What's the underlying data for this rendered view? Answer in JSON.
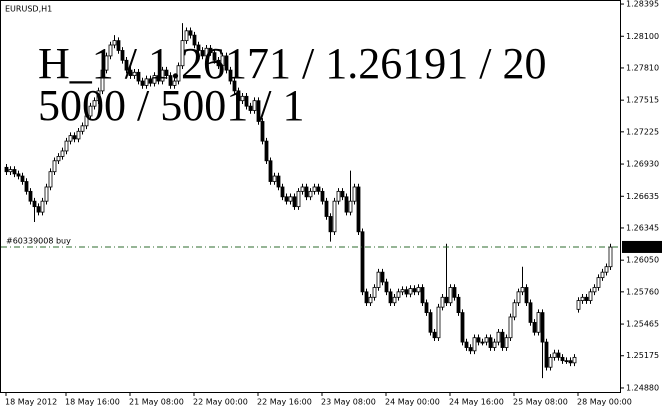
{
  "chart_data": {
    "type": "candlestick",
    "title": "EURUSD,H1",
    "annotations": [
      {
        "text": "H_1 / 1.26171 / 1.26191 / 20",
        "color": "#4169e1"
      },
      {
        "text": "5000 / 5001 / 1",
        "color": "#0a7d0a"
      }
    ],
    "order_line": {
      "label": "#60339008 buy",
      "value": 1.26171,
      "color": "#2e6b2e"
    },
    "last_price": 1.26171,
    "colors": {
      "up": "#ffffff",
      "down": "#000000",
      "outline": "#000000"
    },
    "categories": [
      "18 May 2012",
      null,
      null,
      null,
      null,
      null,
      null,
      null,
      null,
      null,
      null,
      null,
      null,
      null,
      null,
      "18 May 16:00",
      null,
      null,
      null,
      null,
      null,
      null,
      null,
      null,
      null,
      null,
      null,
      null,
      null,
      null,
      null,
      "21 May 08:00",
      null,
      null,
      null,
      null,
      null,
      null,
      null,
      null,
      null,
      null,
      null,
      null,
      null,
      null,
      null,
      "22 May 00:00",
      null,
      null,
      null,
      null,
      null,
      null,
      null,
      null,
      null,
      null,
      null,
      null,
      null,
      null,
      null,
      "22 May 16:00",
      null,
      null,
      null,
      null,
      null,
      null,
      null,
      null,
      null,
      null,
      null,
      null,
      null,
      null,
      null,
      "23 May 08:00",
      null,
      null,
      null,
      null,
      null,
      null,
      null,
      null,
      null,
      null,
      null,
      null,
      null,
      null,
      null,
      "24 May 00:00",
      null,
      null,
      null,
      null,
      null,
      null,
      null,
      null,
      null,
      null,
      null,
      null,
      null,
      null,
      null,
      "24 May 16:00",
      null,
      null,
      null,
      null,
      null,
      null,
      null,
      null,
      null,
      null,
      null,
      null,
      null,
      null,
      null,
      "25 May 08:00",
      null,
      null,
      null,
      null,
      null,
      null,
      null,
      null,
      null,
      null,
      null,
      null,
      null,
      null,
      null,
      "28 May 00:00",
      null,
      null,
      null,
      null,
      null,
      null,
      null,
      null
    ],
    "open": [
      1.269,
      1.2686,
      1.2688,
      1.2684,
      1.2682,
      1.2677,
      1.2668,
      1.2659,
      1.2654,
      1.2649,
      1.2659,
      1.2672,
      1.2686,
      1.2696,
      1.27,
      1.2705,
      1.2714,
      1.2719,
      1.2716,
      1.2723,
      1.2728,
      1.2737,
      1.2746,
      1.2751,
      1.276,
      1.2779,
      1.2792,
      1.2802,
      1.2806,
      1.2797,
      1.2788,
      1.2779,
      1.2774,
      1.2777,
      1.2769,
      1.2765,
      1.2771,
      1.2767,
      1.2774,
      1.2769,
      1.2779,
      1.2774,
      1.2765,
      1.2769,
      1.2783,
      1.2806,
      1.2815,
      1.2811,
      1.2802,
      1.2797,
      1.2792,
      1.2799,
      1.2795,
      1.2788,
      1.2783,
      1.2792,
      1.2779,
      1.2769,
      1.276,
      1.2751,
      1.2755,
      1.2746,
      1.2742,
      1.2751,
      1.2732,
      1.2714,
      1.2696,
      1.2677,
      1.2682,
      1.2672,
      1.2663,
      1.2659,
      1.2663,
      1.2654,
      1.2668,
      1.2672,
      1.2663,
      1.2668,
      1.2672,
      1.2668,
      1.2659,
      1.2645,
      1.2631,
      1.2659,
      1.2668,
      1.2663,
      1.2649,
      1.2659,
      1.2672,
      1.2631,
      1.2576,
      1.2566,
      1.2571,
      1.258,
      1.2594,
      1.2585,
      1.2576,
      1.2566,
      1.2571,
      1.2576,
      1.2578,
      1.2574,
      1.2579,
      1.2576,
      1.258,
      1.2566,
      1.2557,
      1.2539,
      1.2534,
      1.2562,
      1.2571,
      1.2566,
      1.258,
      1.2571,
      1.2557,
      1.253,
      1.2525,
      1.2522,
      1.2534,
      1.253,
      1.253,
      1.2534,
      1.2525,
      1.253,
      1.2539,
      1.2525,
      1.2534,
      1.2553,
      1.2566,
      1.2576,
      1.258,
      1.2566,
      1.2548,
      1.2539,
      1.2557,
      1.253,
      1.2507,
      1.2516,
      1.252,
      1.2516,
      1.2513,
      1.2513,
      1.2511,
      1.256,
      1.2568,
      1.2571,
      1.2568,
      1.2576,
      1.258,
      1.2589,
      1.2594,
      1.2599
    ],
    "high": [
      1.2693,
      1.2691,
      1.2691,
      1.2687,
      1.2685,
      1.268,
      1.2671,
      1.2662,
      1.2657,
      1.2662,
      1.2675,
      1.2689,
      1.2699,
      1.2703,
      1.2708,
      1.2717,
      1.2722,
      1.2722,
      1.2726,
      1.2731,
      1.274,
      1.2749,
      1.2754,
      1.2763,
      1.2782,
      1.2795,
      1.2805,
      1.2811,
      1.2809,
      1.28,
      1.2791,
      1.2782,
      1.278,
      1.278,
      1.2772,
      1.2774,
      1.2774,
      1.2777,
      1.2777,
      1.2782,
      1.2782,
      1.2777,
      1.2772,
      1.2786,
      1.2822,
      1.2818,
      1.2818,
      1.2814,
      1.2805,
      1.28,
      1.2802,
      1.2802,
      1.2798,
      1.2791,
      1.2795,
      1.2795,
      1.2782,
      1.2772,
      1.2763,
      1.2758,
      1.2758,
      1.2749,
      1.2754,
      1.2754,
      1.2735,
      1.2717,
      1.2699,
      1.2685,
      1.2685,
      1.2675,
      1.2666,
      1.2666,
      1.2666,
      1.2671,
      1.2675,
      1.2675,
      1.2671,
      1.2675,
      1.2675,
      1.2671,
      1.2662,
      1.2648,
      1.2662,
      1.2671,
      1.2671,
      1.2666,
      1.2687,
      1.2675,
      1.2675,
      1.2634,
      1.2579,
      1.2574,
      1.2583,
      1.2597,
      1.2597,
      1.2588,
      1.2579,
      1.2574,
      1.2579,
      1.2581,
      1.2581,
      1.2582,
      1.2582,
      1.2583,
      1.2583,
      1.2569,
      1.256,
      1.2542,
      1.2565,
      1.2574,
      1.262,
      1.2583,
      1.2583,
      1.2574,
      1.256,
      1.2533,
      1.2528,
      1.2537,
      1.2537,
      1.2533,
      1.2537,
      1.2537,
      1.2533,
      1.2542,
      1.2542,
      1.2537,
      1.2556,
      1.2569,
      1.2579,
      1.2599,
      1.2583,
      1.2569,
      1.2551,
      1.256,
      1.256,
      1.2533,
      1.2519,
      1.2523,
      1.2523,
      1.2519,
      1.2516,
      1.2516,
      1.2519,
      1.2571,
      1.2574,
      1.2574,
      1.2579,
      1.2583,
      1.2592,
      1.2597,
      1.2602,
      1.262
    ],
    "low": [
      1.2683,
      1.2683,
      1.2681,
      1.2679,
      1.2674,
      1.2665,
      1.2656,
      1.264,
      1.2646,
      1.2646,
      1.2656,
      1.2669,
      1.2683,
      1.2693,
      1.2697,
      1.2702,
      1.2711,
      1.2713,
      1.2713,
      1.272,
      1.2725,
      1.2734,
      1.2743,
      1.2748,
      1.2757,
      1.2776,
      1.2789,
      1.2799,
      1.2794,
      1.2785,
      1.2776,
      1.2771,
      1.2771,
      1.2766,
      1.2762,
      1.2762,
      1.2764,
      1.2764,
      1.2766,
      1.2766,
      1.2771,
      1.2762,
      1.2762,
      1.2766,
      1.278,
      1.2803,
      1.2808,
      1.2799,
      1.2794,
      1.2789,
      1.2789,
      1.2792,
      1.2785,
      1.278,
      1.278,
      1.2776,
      1.2766,
      1.2757,
      1.2748,
      1.2748,
      1.2743,
      1.2739,
      1.2739,
      1.2729,
      1.2711,
      1.2693,
      1.2674,
      1.2674,
      1.2669,
      1.266,
      1.2656,
      1.2656,
      1.2651,
      1.2651,
      1.2665,
      1.266,
      1.266,
      1.2665,
      1.2665,
      1.2656,
      1.2642,
      1.2622,
      1.2628,
      1.2656,
      1.266,
      1.2646,
      1.2646,
      1.2656,
      1.2628,
      1.2573,
      1.2563,
      1.2563,
      1.2568,
      1.2577,
      1.2582,
      1.2573,
      1.2563,
      1.2563,
      1.2568,
      1.2573,
      1.2571,
      1.2571,
      1.2573,
      1.2573,
      1.2563,
      1.2554,
      1.2536,
      1.2531,
      1.2531,
      1.2559,
      1.2563,
      1.2563,
      1.2568,
      1.2554,
      1.2527,
      1.2522,
      1.2519,
      1.2519,
      1.2527,
      1.2527,
      1.2527,
      1.2522,
      1.2522,
      1.2527,
      1.2522,
      1.2522,
      1.2531,
      1.255,
      1.2563,
      1.2573,
      1.2563,
      1.2545,
      1.2536,
      1.2536,
      1.2497,
      1.2504,
      1.2504,
      1.2513,
      1.2513,
      1.251,
      1.251,
      1.2508,
      1.2508,
      1.2557,
      1.2565,
      1.2565,
      1.2565,
      1.2573,
      1.2577,
      1.2586,
      1.2591,
      1.2596
    ],
    "close": [
      1.2686,
      1.2688,
      1.2684,
      1.2682,
      1.2677,
      1.2668,
      1.2659,
      1.2654,
      1.2649,
      1.2659,
      1.2672,
      1.2686,
      1.2696,
      1.27,
      1.2705,
      1.2714,
      1.2719,
      1.2716,
      1.2723,
      1.2728,
      1.2737,
      1.2746,
      1.2751,
      1.276,
      1.2779,
      1.2792,
      1.2802,
      1.2806,
      1.2797,
      1.2788,
      1.2779,
      1.2774,
      1.2777,
      1.2769,
      1.2765,
      1.2771,
      1.2767,
      1.2774,
      1.2769,
      1.2779,
      1.2774,
      1.2765,
      1.2769,
      1.2783,
      1.2806,
      1.2815,
      1.2811,
      1.2802,
      1.2797,
      1.2792,
      1.2799,
      1.2795,
      1.2788,
      1.2783,
      1.2792,
      1.2779,
      1.2769,
      1.276,
      1.2751,
      1.2755,
      1.2746,
      1.2742,
      1.2751,
      1.2732,
      1.2714,
      1.2696,
      1.2677,
      1.2682,
      1.2672,
      1.2663,
      1.2659,
      1.2663,
      1.2654,
      1.2668,
      1.2672,
      1.2663,
      1.2668,
      1.2672,
      1.2668,
      1.2659,
      1.2645,
      1.2631,
      1.2659,
      1.2668,
      1.2663,
      1.2649,
      1.2659,
      1.2672,
      1.2631,
      1.2576,
      1.2566,
      1.2571,
      1.258,
      1.2594,
      1.2585,
      1.2576,
      1.2566,
      1.2571,
      1.2576,
      1.2578,
      1.2574,
      1.2579,
      1.2576,
      1.258,
      1.2566,
      1.2557,
      1.2539,
      1.2534,
      1.2562,
      1.2571,
      1.2566,
      1.258,
      1.2571,
      1.2557,
      1.253,
      1.2525,
      1.2522,
      1.2534,
      1.253,
      1.253,
      1.2534,
      1.2525,
      1.253,
      1.2539,
      1.2525,
      1.2534,
      1.2553,
      1.2566,
      1.2576,
      1.258,
      1.2566,
      1.2548,
      1.2539,
      1.2557,
      1.253,
      1.2507,
      1.2516,
      1.252,
      1.2516,
      1.2513,
      1.2513,
      1.2511,
      1.2516,
      1.2568,
      1.2571,
      1.2568,
      1.2576,
      1.258,
      1.2589,
      1.2594,
      1.2599,
      1.2617
    ],
    "ylim": [
      1.24843,
      1.28432
    ],
    "yticks": [
      1.28395,
      {
        "value": 1.281,
        "label": "1.28100"
      },
      {
        "value": 1.2781,
        "label": "1.27810"
      },
      1.27515,
      1.27225,
      {
        "value": 1.2693,
        "label": "1.26930"
      },
      1.26635,
      1.26345,
      {
        "value": 1.2605,
        "label": "1.26050"
      },
      {
        "value": 1.2576,
        "label": "1.25760"
      },
      1.25465,
      1.25175,
      {
        "value": 1.2488,
        "label": "1.24880"
      }
    ]
  }
}
